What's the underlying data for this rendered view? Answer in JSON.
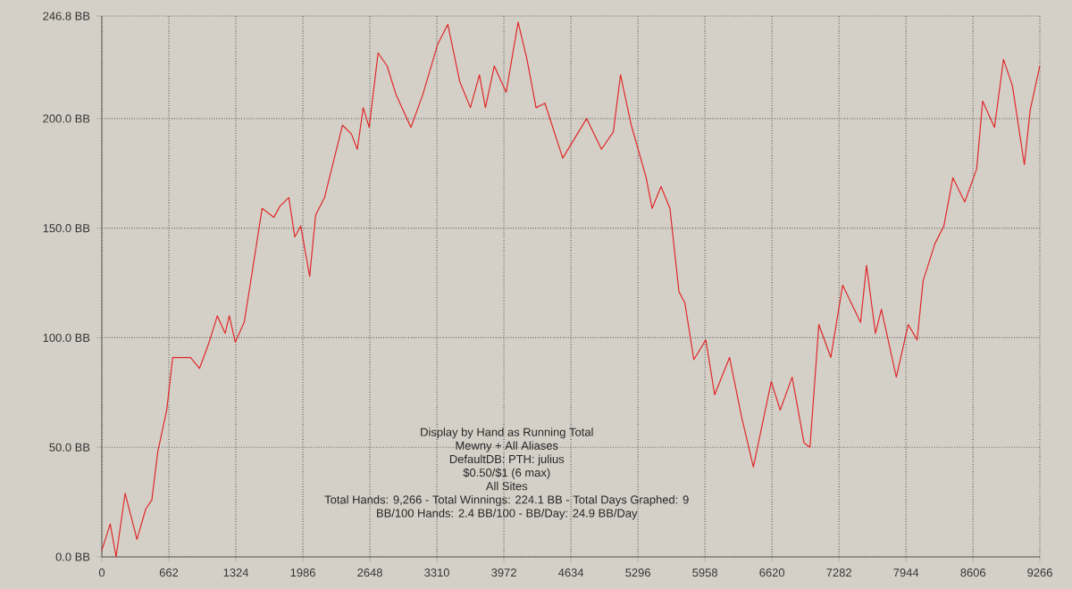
{
  "chart_data": {
    "type": "line",
    "x": [
      0,
      83,
      141,
      230,
      347,
      435,
      494,
      553,
      641,
      700,
      877,
      965,
      1053,
      1141,
      1218,
      1259,
      1318,
      1406,
      1465,
      1583,
      1700,
      1759,
      1847,
      1906,
      1965,
      2053,
      2112,
      2200,
      2259,
      2377,
      2465,
      2524,
      2582,
      2641,
      2729,
      2818,
      2906,
      3053,
      3171,
      3318,
      3418,
      3535,
      3641,
      3730,
      3789,
      3877,
      3994,
      4112,
      4200,
      4289,
      4377,
      4553,
      4789,
      4936,
      5053,
      5124,
      5230,
      5377,
      5436,
      5524,
      5612,
      5701,
      5759,
      5848,
      5966,
      6054,
      6201,
      6319,
      6436,
      6613,
      6701,
      6819,
      6937,
      6995,
      7083,
      7201,
      7318,
      7495,
      7554,
      7642,
      7701,
      7848,
      7966,
      8054,
      8113,
      8230,
      8318,
      8407,
      8524,
      8642,
      8701,
      8818,
      8907,
      8995,
      9113,
      9171,
      9266
    ],
    "values": [
      3,
      15,
      0,
      29,
      8,
      22,
      26,
      48,
      67,
      91,
      91,
      86,
      97,
      110,
      102,
      110,
      98,
      107,
      124,
      159,
      155,
      160,
      164,
      146,
      151,
      128,
      156,
      164,
      175,
      197,
      193,
      186,
      205,
      196,
      230,
      224,
      211,
      196,
      211,
      234,
      243,
      217,
      205,
      220,
      205,
      224,
      212,
      244,
      227,
      205,
      207,
      182,
      200,
      186,
      194,
      220,
      197,
      173,
      159,
      169,
      159,
      121,
      116,
      90,
      99,
      74,
      91,
      64,
      41,
      80,
      67,
      82,
      52,
      50,
      106,
      91,
      124,
      107,
      133,
      102,
      113,
      82,
      106,
      99,
      126,
      143,
      151,
      173,
      162,
      177,
      208,
      196,
      227,
      215,
      179,
      204,
      224.1
    ],
    "color": "#e02828",
    "xlim": [
      0,
      9266
    ],
    "ylim": [
      0,
      246.8
    ],
    "xticks": [
      0,
      662,
      1324,
      1986,
      2648,
      3310,
      3972,
      4634,
      5296,
      5958,
      6620,
      7282,
      7944,
      8606,
      9266
    ],
    "yticks": [
      {
        "value": 0,
        "label": "0.0 BB"
      },
      {
        "value": 50,
        "label": "50.0 BB"
      },
      {
        "value": 100,
        "label": "100.0 BB"
      },
      {
        "value": 150,
        "label": "150.0 BB"
      },
      {
        "value": 200,
        "label": "200.0 BB"
      },
      {
        "value": 246.8,
        "label": "246.8 BB"
      }
    ],
    "grid": true,
    "annotations": [
      "Display by Hand as Running Total",
      "Mewny + All Aliases",
      "DefaultDB: PTH: julius",
      "$0.50/$1 (6 max)",
      "All Sites",
      "Total Hands: 9,266 - Total Winnings: 224.1 BB - Total Days Graphed: 9",
      "BB/100 Hands: 2.4 BB/100 - BB/Day: 24.9 BB/Day"
    ]
  }
}
